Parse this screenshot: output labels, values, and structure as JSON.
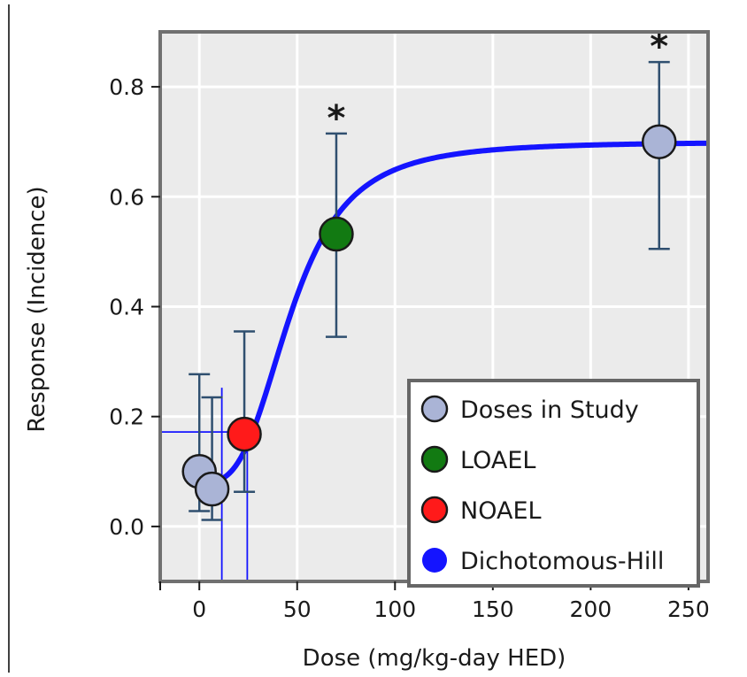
{
  "chart_data": {
    "type": "scatter",
    "xlabel": "Dose (mg/kg-day HED)",
    "ylabel": "Response (Incidence)",
    "xlim": [
      -20,
      260
    ],
    "ylim": [
      -0.1,
      0.9
    ],
    "x_ticks": [
      0,
      50,
      100,
      150,
      200,
      250
    ],
    "x_tick_labels": [
      "0",
      "50",
      "100",
      "150",
      "200",
      "250"
    ],
    "y_ticks": [
      0.0,
      0.2,
      0.4,
      0.6,
      0.8
    ],
    "y_tick_labels": [
      "0.0",
      "0.2",
      "0.4",
      "0.6",
      "0.8"
    ],
    "grid": true,
    "legend_position": "bottom-right",
    "legend": [
      {
        "label": "Doses in Study",
        "color": "#aab4d6"
      },
      {
        "label": "LOAEL",
        "color": "#127a12"
      },
      {
        "label": "NOAEL",
        "color": "#ff1a1a"
      },
      {
        "label": "Dichotomous-Hill",
        "color": "#1414ff"
      }
    ],
    "points": [
      {
        "x": 0,
        "y": 0.1,
        "y_low": 0.028,
        "y_high": 0.277,
        "kind": "dose",
        "significant": false
      },
      {
        "x": 6.5,
        "y": 0.068,
        "y_low": 0.012,
        "y_high": 0.235,
        "kind": "dose",
        "significant": false
      },
      {
        "x": 23,
        "y": 0.168,
        "y_low": 0.063,
        "y_high": 0.355,
        "kind": "noael",
        "significant": false
      },
      {
        "x": 70,
        "y": 0.532,
        "y_low": 0.345,
        "y_high": 0.715,
        "kind": "loael",
        "significant": true
      },
      {
        "x": 235,
        "y": 0.7,
        "y_low": 0.505,
        "y_high": 0.845,
        "kind": "dose",
        "significant": true
      }
    ],
    "significance_marker": "*",
    "model_curve": {
      "name": "Dichotomous-Hill",
      "background": 0.08,
      "plateau": 0.7,
      "ec50": 47,
      "hill_n": 3.2,
      "x_start": 0,
      "x_end": 260
    },
    "bmd_lines": {
      "response": 0.172,
      "bmdl": 11.5,
      "bmd": 24.5
    },
    "colors": {
      "plot_background": "#ebebeb",
      "grid": "#ffffff",
      "frame": "#707070",
      "error_bar": "#2f4f6f",
      "marker_edge": "#1a1a1a",
      "curve": "#1414ff",
      "bmd_line": "#1414ff"
    }
  }
}
